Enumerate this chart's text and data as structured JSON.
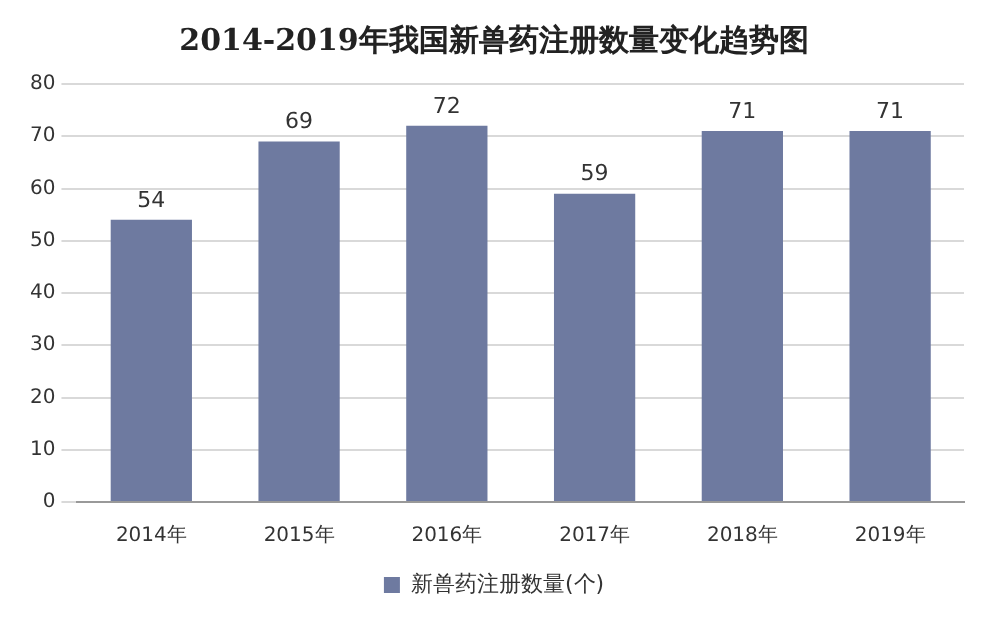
{
  "chart_data": {
    "type": "bar",
    "title": "2014-2019年我国新兽药注册数量变化趋势图",
    "categories": [
      "2014年",
      "2015年",
      "2016年",
      "2017年",
      "2018年",
      "2019年"
    ],
    "series": [
      {
        "name": "新兽药注册数量(个)",
        "color": "#6e7aa0",
        "values": [
          54,
          69,
          72,
          59,
          71,
          71
        ]
      }
    ],
    "ylim": [
      0,
      80
    ],
    "yticks": [
      0,
      10,
      20,
      30,
      40,
      50,
      60,
      70,
      80
    ],
    "grid": "y",
    "legend": "bottom",
    "data_labels": true
  }
}
